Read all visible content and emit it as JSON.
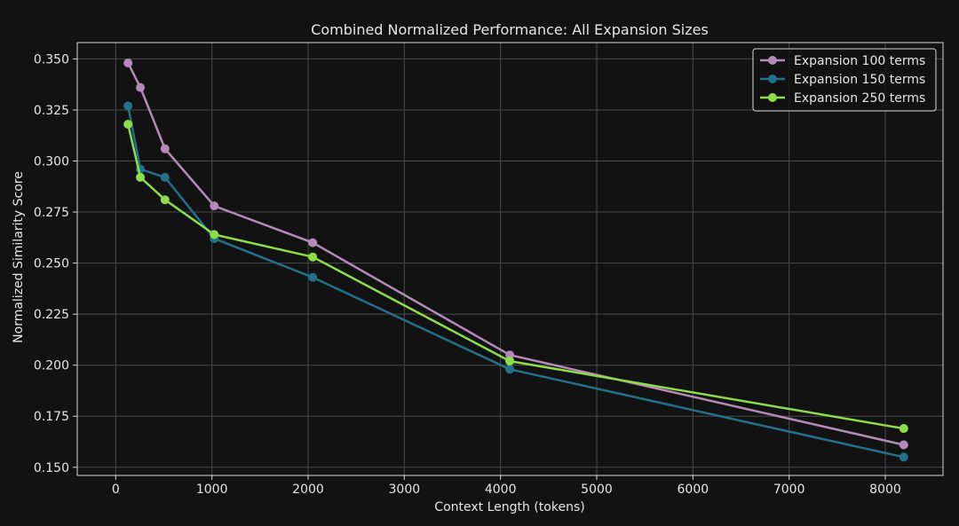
{
  "chart_data": {
    "type": "line",
    "title": "Combined Normalized Performance: All Expansion Sizes",
    "xlabel": "Context Length (tokens)",
    "ylabel": "Normalized Similarity Score",
    "xlim": [
      -400,
      8600
    ],
    "ylim": [
      0.146,
      0.358
    ],
    "xticks": [
      0,
      1000,
      2000,
      3000,
      4000,
      5000,
      6000,
      7000,
      8000
    ],
    "yticks": [
      0.15,
      0.175,
      0.2,
      0.225,
      0.25,
      0.275,
      0.3,
      0.325,
      0.35
    ],
    "grid": true,
    "legend_position": "top-right",
    "series": [
      {
        "name": "Expansion 100 terms",
        "color": "#b48ab8",
        "x": [
          128,
          256,
          512,
          1024,
          2048,
          4096,
          8192
        ],
        "y": [
          0.348,
          0.336,
          0.306,
          0.278,
          0.26,
          0.205,
          0.161
        ]
      },
      {
        "name": "Expansion 150 terms",
        "color": "#23708a",
        "x": [
          128,
          256,
          512,
          1024,
          2048,
          4096,
          8192
        ],
        "y": [
          0.327,
          0.296,
          0.292,
          0.262,
          0.243,
          0.198,
          0.155
        ]
      },
      {
        "name": "Expansion 250 terms",
        "color": "#8ddc4a",
        "x": [
          128,
          256,
          512,
          1024,
          2048,
          4096,
          8192
        ],
        "y": [
          0.318,
          0.292,
          0.281,
          0.264,
          0.253,
          0.202,
          0.169
        ]
      }
    ]
  }
}
